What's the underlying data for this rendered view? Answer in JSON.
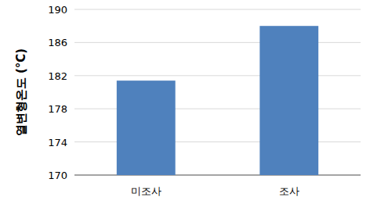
{
  "chart_data": {
    "type": "bar",
    "y_label": "열변형온도 (°C)",
    "categories": [
      "미조사",
      "조사"
    ],
    "values": [
      181.4,
      188.0
    ],
    "color": "#4f81bd",
    "ylim": [
      170,
      190
    ],
    "yticks": [
      170,
      174,
      178,
      182,
      186,
      190
    ],
    "grid": true
  }
}
